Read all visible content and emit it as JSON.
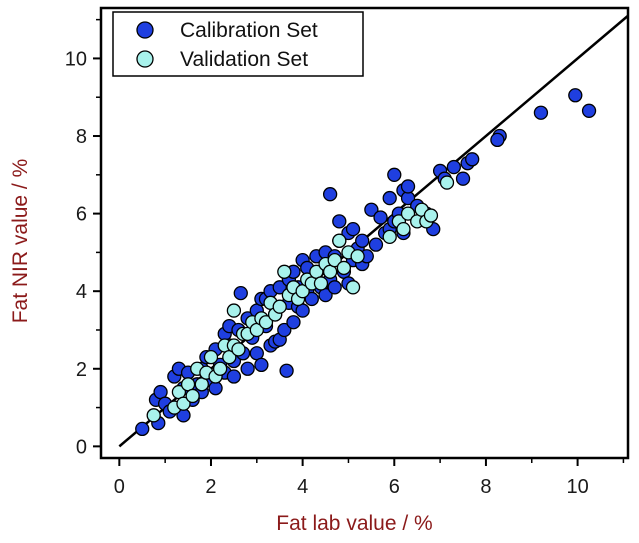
{
  "chart_data": {
    "type": "scatter",
    "title": "",
    "xlabel": "Fat lab value / %",
    "ylabel": "Fat NIR value / %",
    "xlim": [
      -0.4,
      11.1
    ],
    "ylim": [
      -0.3,
      11.3
    ],
    "xticks": [
      0,
      2,
      4,
      6,
      8,
      10
    ],
    "yticks": [
      0,
      2,
      4,
      6,
      8,
      10
    ],
    "grid": false,
    "legend_position": "top-left",
    "reference_line": {
      "x": [
        0,
        11.1
      ],
      "y": [
        0,
        11.1
      ],
      "color": "#000000"
    },
    "series": [
      {
        "name": "Calibration Set",
        "color": "#1f3fe0",
        "points": [
          [
            0.5,
            0.45
          ],
          [
            0.85,
            0.6
          ],
          [
            0.8,
            1.2
          ],
          [
            0.9,
            1.4
          ],
          [
            1.0,
            1.1
          ],
          [
            1.1,
            0.9
          ],
          [
            1.2,
            1.8
          ],
          [
            1.3,
            2.0
          ],
          [
            1.4,
            1.5
          ],
          [
            1.4,
            0.8
          ],
          [
            1.5,
            1.9
          ],
          [
            1.6,
            1.2
          ],
          [
            1.7,
            1.6
          ],
          [
            1.8,
            2.0
          ],
          [
            1.8,
            1.4
          ],
          [
            1.9,
            2.3
          ],
          [
            2.0,
            1.7
          ],
          [
            2.1,
            2.5
          ],
          [
            2.1,
            1.5
          ],
          [
            2.2,
            2.1
          ],
          [
            2.3,
            2.9
          ],
          [
            2.3,
            1.9
          ],
          [
            2.4,
            2.6
          ],
          [
            2.4,
            3.1
          ],
          [
            2.5,
            2.2
          ],
          [
            2.5,
            1.8
          ],
          [
            2.6,
            3.0
          ],
          [
            2.65,
            3.95
          ],
          [
            2.7,
            2.4
          ],
          [
            2.8,
            2.0
          ],
          [
            2.8,
            3.3
          ],
          [
            2.9,
            2.8
          ],
          [
            3.0,
            3.5
          ],
          [
            3.0,
            2.4
          ],
          [
            3.1,
            3.8
          ],
          [
            3.1,
            2.1
          ],
          [
            3.2,
            3.1
          ],
          [
            3.2,
            3.8
          ],
          [
            3.3,
            2.6
          ],
          [
            3.3,
            4.0
          ],
          [
            3.4,
            3.4
          ],
          [
            3.4,
            2.7
          ],
          [
            3.5,
            2.75
          ],
          [
            3.5,
            4.1
          ],
          [
            3.6,
            3.0
          ],
          [
            3.65,
            1.95
          ],
          [
            3.7,
            3.7
          ],
          [
            3.7,
            4.3
          ],
          [
            3.8,
            3.2
          ],
          [
            3.8,
            4.5
          ],
          [
            3.9,
            3.6
          ],
          [
            3.9,
            4.1
          ],
          [
            4.0,
            4.8
          ],
          [
            4.0,
            3.5
          ],
          [
            4.1,
            4.0
          ],
          [
            4.1,
            4.6
          ],
          [
            4.2,
            3.8
          ],
          [
            4.3,
            4.9
          ],
          [
            4.3,
            4.3
          ],
          [
            4.4,
            4.1
          ],
          [
            4.5,
            5.0
          ],
          [
            4.5,
            3.9
          ],
          [
            4.6,
            4.3
          ],
          [
            4.6,
            6.5
          ],
          [
            4.7,
            4.9
          ],
          [
            4.7,
            4.1
          ],
          [
            4.8,
            5.3
          ],
          [
            4.8,
            5.8
          ],
          [
            4.9,
            4.5
          ],
          [
            5.0,
            5.5
          ],
          [
            5.0,
            4.2
          ],
          [
            5.1,
            4.8
          ],
          [
            5.1,
            5.6
          ],
          [
            5.2,
            5.1
          ],
          [
            5.3,
            4.7
          ],
          [
            5.3,
            5.3
          ],
          [
            5.4,
            4.9
          ],
          [
            5.5,
            6.1
          ],
          [
            5.6,
            5.2
          ],
          [
            5.7,
            5.9
          ],
          [
            5.8,
            5.5
          ],
          [
            5.9,
            6.4
          ],
          [
            5.9,
            5.6
          ],
          [
            6.0,
            7.0
          ],
          [
            6.0,
            5.8
          ],
          [
            6.1,
            6.0
          ],
          [
            6.2,
            6.6
          ],
          [
            6.2,
            5.5
          ],
          [
            6.3,
            6.4
          ],
          [
            6.3,
            6.7
          ],
          [
            6.5,
            6.2
          ],
          [
            6.7,
            6.0
          ],
          [
            6.85,
            5.6
          ],
          [
            7.0,
            7.1
          ],
          [
            7.1,
            6.9
          ],
          [
            7.3,
            7.2
          ],
          [
            7.5,
            6.9
          ],
          [
            7.6,
            7.3
          ],
          [
            7.7,
            7.4
          ],
          [
            8.3,
            8.0
          ],
          [
            8.25,
            7.9
          ],
          [
            9.2,
            8.6
          ],
          [
            9.95,
            9.05
          ],
          [
            10.25,
            8.65
          ]
        ]
      },
      {
        "name": "Validation Set",
        "color": "#a8f2ec",
        "points": [
          [
            0.75,
            0.8
          ],
          [
            1.2,
            1.0
          ],
          [
            1.3,
            1.4
          ],
          [
            1.4,
            1.1
          ],
          [
            1.5,
            1.6
          ],
          [
            1.6,
            1.3
          ],
          [
            1.7,
            2.0
          ],
          [
            1.8,
            1.6
          ],
          [
            1.9,
            1.9
          ],
          [
            2.0,
            2.3
          ],
          [
            2.1,
            1.8
          ],
          [
            2.2,
            2.0
          ],
          [
            2.3,
            2.6
          ],
          [
            2.4,
            2.3
          ],
          [
            2.5,
            2.6
          ],
          [
            2.5,
            3.5
          ],
          [
            2.6,
            2.5
          ],
          [
            2.7,
            2.9
          ],
          [
            2.8,
            2.9
          ],
          [
            2.9,
            3.2
          ],
          [
            3.0,
            3.0
          ],
          [
            3.1,
            3.3
          ],
          [
            3.2,
            3.2
          ],
          [
            3.3,
            3.7
          ],
          [
            3.4,
            3.4
          ],
          [
            3.5,
            3.6
          ],
          [
            3.6,
            4.5
          ],
          [
            3.7,
            3.9
          ],
          [
            3.8,
            4.1
          ],
          [
            3.9,
            3.8
          ],
          [
            4.0,
            4.0
          ],
          [
            4.1,
            4.3
          ],
          [
            4.2,
            4.2
          ],
          [
            4.3,
            4.5
          ],
          [
            4.4,
            4.2
          ],
          [
            4.5,
            4.7
          ],
          [
            4.6,
            4.5
          ],
          [
            4.7,
            4.8
          ],
          [
            4.8,
            5.3
          ],
          [
            4.9,
            4.6
          ],
          [
            5.0,
            5.0
          ],
          [
            5.1,
            4.1
          ],
          [
            5.2,
            4.9
          ],
          [
            5.9,
            5.4
          ],
          [
            6.1,
            5.8
          ],
          [
            6.2,
            5.6
          ],
          [
            6.3,
            6.0
          ],
          [
            6.5,
            5.8
          ],
          [
            6.6,
            6.1
          ],
          [
            6.7,
            5.8
          ],
          [
            6.8,
            5.95
          ],
          [
            7.15,
            6.8
          ]
        ]
      }
    ]
  }
}
